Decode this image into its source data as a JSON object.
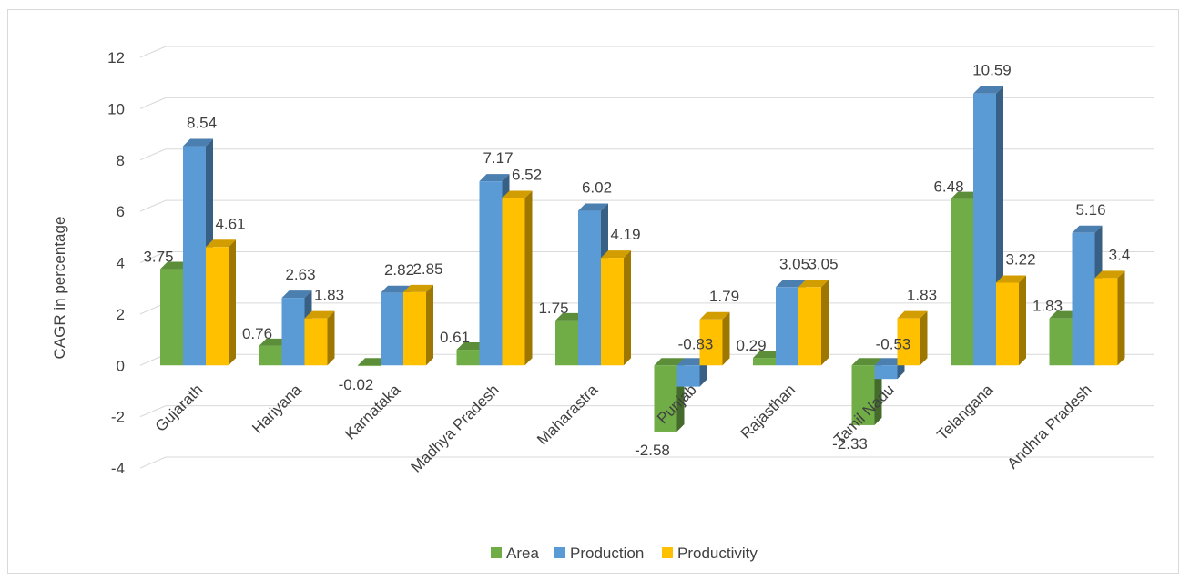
{
  "chart_data": {
    "type": "bar",
    "title": "",
    "xlabel": "",
    "ylabel": "CAGR in percentage",
    "ylim": [
      -4,
      12
    ],
    "yticks": [
      -4,
      -2,
      0,
      2,
      4,
      6,
      8,
      10,
      12
    ],
    "grid": true,
    "legend_position": "bottom-center",
    "categories": [
      "Gujarath",
      "Hariyana",
      "Karnataka",
      "Madhya Pradesh",
      "Maharastra",
      "Punjab",
      "Rajasthan",
      "Tamil Nadu",
      "Telangana",
      "Andhra Pradesh"
    ],
    "series": [
      {
        "name": "Area",
        "color": "#70ad47",
        "values": [
          3.75,
          0.76,
          -0.02,
          0.61,
          1.75,
          -2.58,
          0.29,
          -2.33,
          6.48,
          1.83
        ]
      },
      {
        "name": "Production",
        "color": "#5b9bd5",
        "values": [
          8.54,
          2.63,
          2.82,
          7.17,
          6.02,
          -0.83,
          3.05,
          -0.53,
          10.59,
          5.16
        ]
      },
      {
        "name": "Productivity",
        "color": "#ffc000",
        "values": [
          4.61,
          1.83,
          2.85,
          6.52,
          4.19,
          1.79,
          3.05,
          1.83,
          3.22,
          3.4
        ]
      }
    ]
  }
}
